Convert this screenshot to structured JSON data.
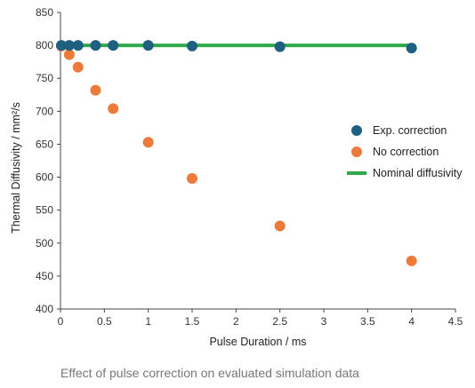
{
  "chart_data": {
    "type": "scatter",
    "xlabel": "Pulse Duration / ms",
    "ylabel": "Thermal Diffusivity / mm²/s",
    "xlim": [
      0,
      4.5
    ],
    "ylim": [
      400,
      850
    ],
    "x_ticks": [
      0,
      0.5,
      1,
      1.5,
      2,
      2.5,
      3,
      3.5,
      4,
      4.5
    ],
    "x_tick_labels": [
      "0",
      "0.5",
      "1",
      "1.5",
      "2",
      "2.5",
      "3",
      "3.5",
      "4",
      "4.5"
    ],
    "y_ticks": [
      400,
      450,
      500,
      550,
      600,
      650,
      700,
      750,
      800,
      850
    ],
    "y_tick_labels": [
      "400",
      "450",
      "500",
      "550",
      "600",
      "650",
      "700",
      "750",
      "800",
      "850"
    ],
    "grid": false,
    "legend_position": "right",
    "series": [
      {
        "name": "Exp. correction",
        "kind": "scatter",
        "color": "#1f5f7f",
        "x": [
          0.01,
          0.1,
          0.2,
          0.4,
          0.6,
          1.0,
          1.5,
          2.5,
          4.0
        ],
        "y": [
          800,
          800,
          800,
          800,
          800,
          800,
          799,
          798,
          796
        ]
      },
      {
        "name": "No correction",
        "kind": "scatter",
        "color": "#ec7a3a",
        "x": [
          0.01,
          0.1,
          0.2,
          0.4,
          0.6,
          1.0,
          1.5,
          2.5,
          4.0
        ],
        "y": [
          799,
          786,
          767,
          732,
          704,
          653,
          598,
          526,
          473
        ]
      },
      {
        "name": "Nominal diffusivity",
        "kind": "line",
        "color": "#2ea84a",
        "x": [
          0,
          4
        ],
        "y": [
          800,
          800
        ]
      }
    ]
  },
  "caption": "Effect of pulse correction on evaluated simulation data"
}
